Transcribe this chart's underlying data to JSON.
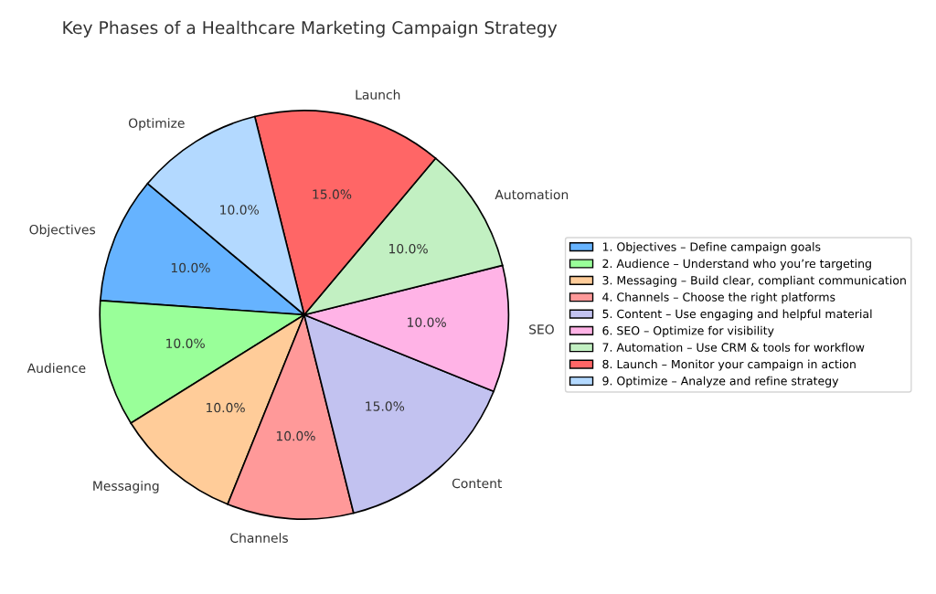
{
  "chart_data": {
    "type": "pie",
    "title": "Key Phases of a Healthcare Marketing Campaign Strategy",
    "categories": [
      "Objectives",
      "Audience",
      "Messaging",
      "Channels",
      "Content",
      "SEO",
      "Automation",
      "Launch",
      "Optimize"
    ],
    "values": [
      10,
      10,
      10,
      10,
      15,
      10,
      10,
      15,
      10
    ],
    "value_labels": [
      "10.0%",
      "10.0%",
      "10.0%",
      "10.0%",
      "15.0%",
      "10.0%",
      "10.0%",
      "15.0%",
      "10.0%"
    ],
    "colors": [
      "#66b3ff",
      "#99ff99",
      "#ffcc99",
      "#ff9999",
      "#c2c2f0",
      "#ffb3e6",
      "#c2f0c2",
      "#ff6666",
      "#b3d9ff"
    ],
    "legend": "right",
    "annotations": [
      "1. Objectives – Define campaign goals",
      "2. Audience – Understand who you’re targeting",
      "3. Messaging – Build clear, compliant communication",
      "4. Channels – Choose the right platforms",
      "5. Content – Use engaging and helpful material",
      "6. SEO – Optimize for visibility",
      "7. Automation – Use CRM & tools for workflow",
      "8. Launch – Monitor your campaign in action",
      "9. Optimize – Analyze and refine strategy"
    ]
  }
}
